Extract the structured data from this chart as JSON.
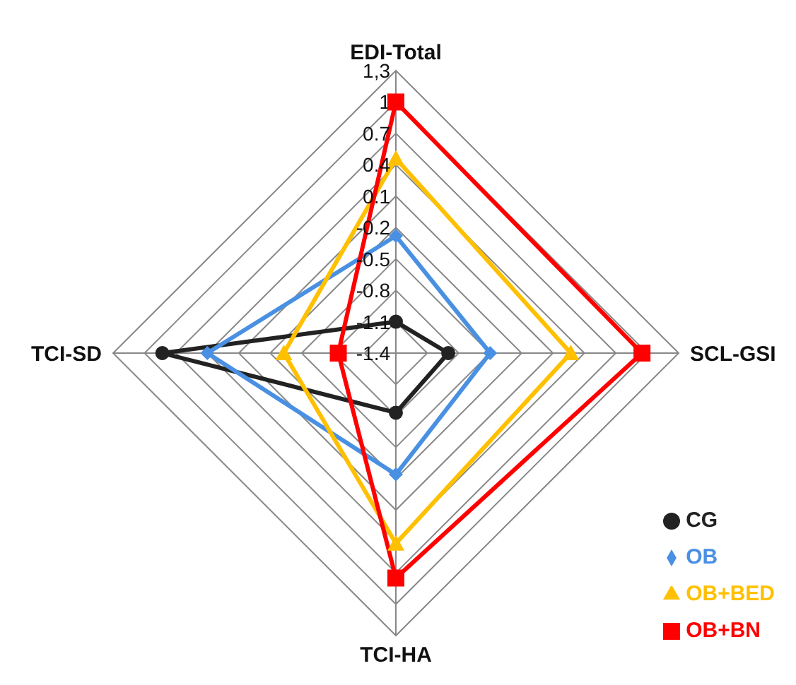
{
  "chart_data": {
    "type": "radar",
    "categories": [
      "EDI-Total",
      "SCL-GSI",
      "TCI-HA",
      "TCI-SD"
    ],
    "series": [
      {
        "name": "CG",
        "color": "#222222",
        "marker": "circle",
        "values": [
          -1.1,
          -0.9,
          -0.83,
          0.83
        ]
      },
      {
        "name": "OB",
        "color": "#4a90e2",
        "marker": "diamond",
        "values": [
          -0.28,
          -0.5,
          -0.24,
          0.4
        ]
      },
      {
        "name": "OB+BED",
        "color": "#ffc000",
        "marker": "triangle",
        "values": [
          0.46,
          0.27,
          0.42,
          -0.33
        ]
      },
      {
        "name": "OB+BN",
        "color": "#ff0000",
        "marker": "square",
        "values": [
          1.0,
          0.95,
          0.75,
          -0.85
        ]
      }
    ],
    "ylim": [
      -1.4,
      1.3
    ],
    "yticks": [
      -1.4,
      -1.1,
      -0.8,
      -0.5,
      -0.2,
      0.1,
      0.4,
      0.7,
      1,
      {
        "value": 1.3,
        "label": "1,3"
      }
    ],
    "grid": true,
    "legend": "bottom right"
  }
}
